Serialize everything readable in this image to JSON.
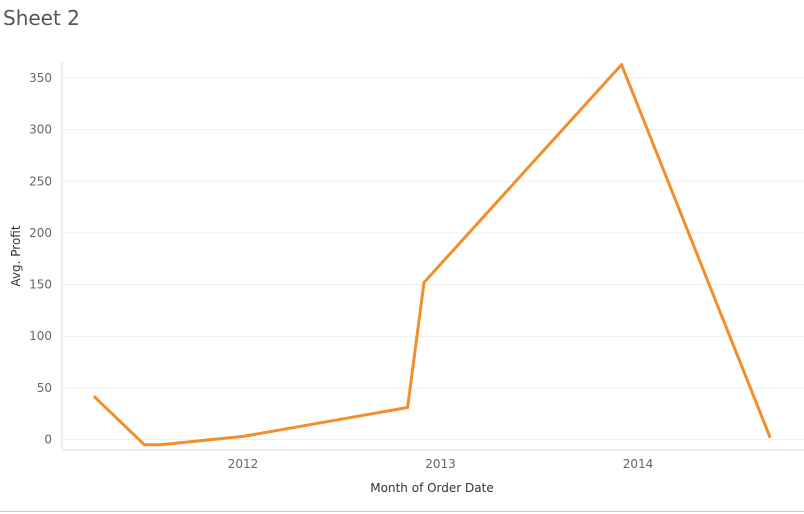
{
  "sheet": {
    "title": "Sheet 2"
  },
  "chart_data": {
    "type": "line",
    "xlabel": "Month of Order Date",
    "ylabel": "Avg. Profit",
    "ylim": [
      0,
      350
    ],
    "yticks": [
      0,
      50,
      100,
      150,
      200,
      250,
      300,
      350
    ],
    "xticks": [
      "2012",
      "2013",
      "2014"
    ],
    "grid": true,
    "series": [
      {
        "color": "#f28e2b",
        "points": [
          {
            "x": "2011-04",
            "y": 41
          },
          {
            "x": "2011-07",
            "y": -5
          },
          {
            "x": "2011-08",
            "y": -5
          },
          {
            "x": "2012-01",
            "y": 3
          },
          {
            "x": "2012-11",
            "y": 31
          },
          {
            "x": "2012-12",
            "y": 152
          },
          {
            "x": "2013-12",
            "y": 363
          },
          {
            "x": "2014-09",
            "y": 3
          }
        ]
      }
    ]
  }
}
